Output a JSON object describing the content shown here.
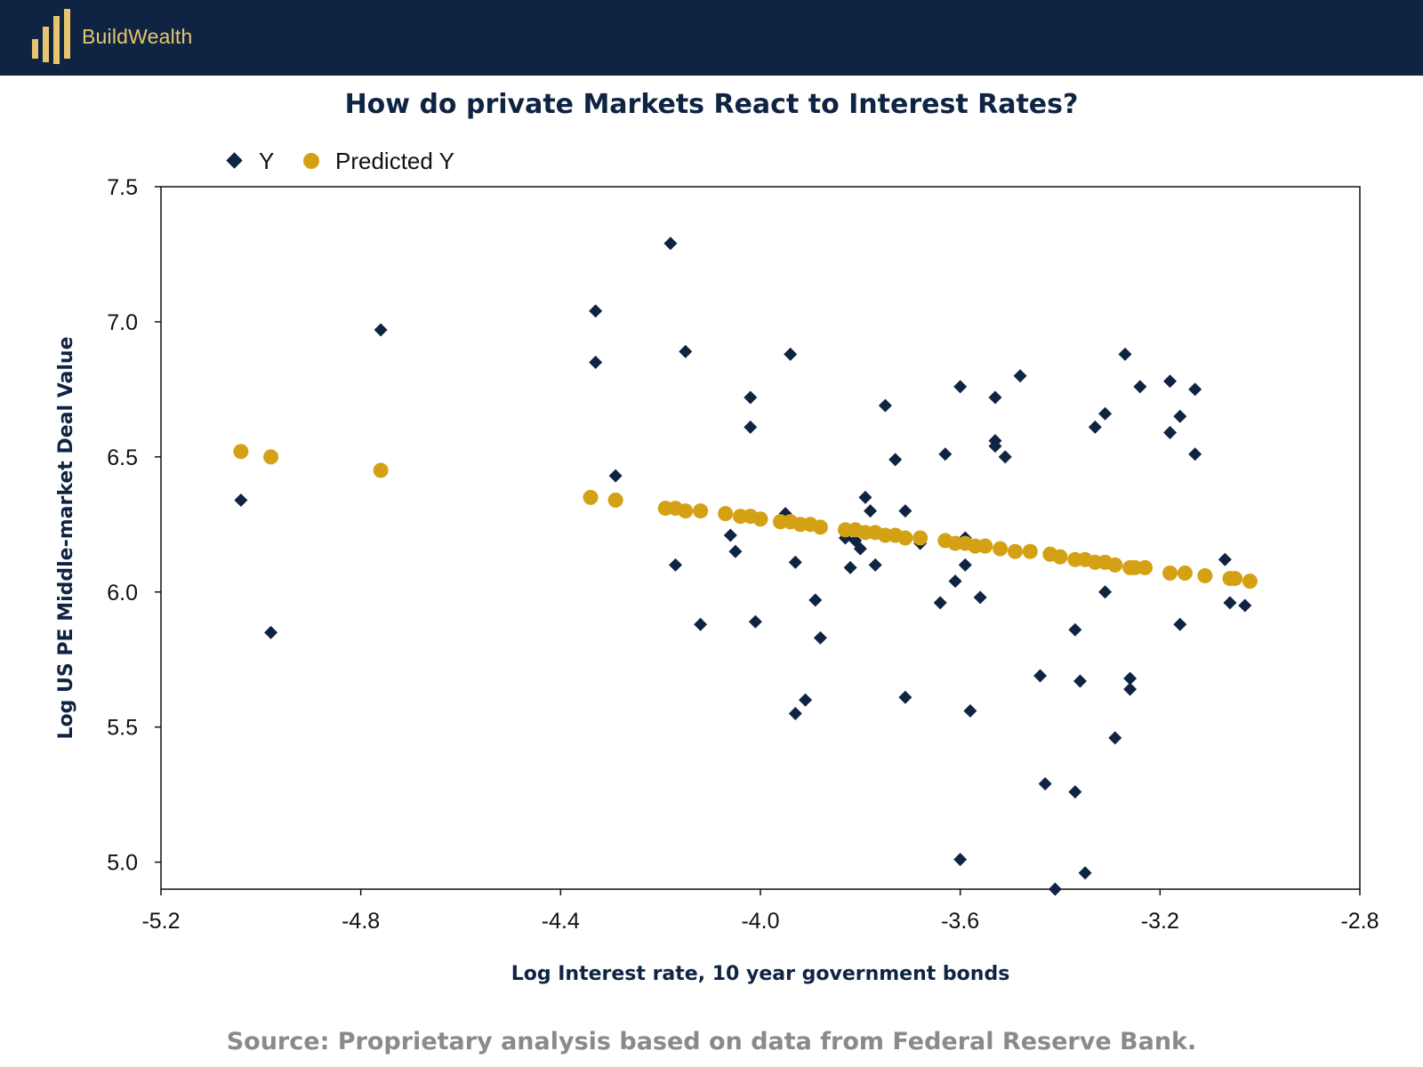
{
  "header": {
    "brand_name": "BuildWealth",
    "colors": {
      "bar": "#0f2443",
      "logo": "#e6c56e"
    }
  },
  "footer": {
    "source": "Source: Proprietary analysis based on data from   Federal Reserve Bank."
  },
  "chart_data": {
    "type": "scatter",
    "title": "How do private Markets React to Interest Rates?",
    "xlabel": "Log Interest rate, 10 year government bonds",
    "ylabel": "Log US PE Middle-market Deal Value",
    "xlim": [
      -5.2,
      -2.8
    ],
    "ylim": [
      4.9,
      7.5
    ],
    "xticks": [
      -5.2,
      -4.8,
      -4.4,
      -4.0,
      -3.6,
      -3.2,
      -2.8
    ],
    "xtick_labels": [
      "-5.2",
      "-4.8",
      "-4.4",
      "-4.0",
      "-3.6",
      "-3.2",
      "-2.8"
    ],
    "yticks": [
      5.0,
      5.5,
      6.0,
      6.5,
      7.0,
      7.5
    ],
    "ytick_labels": [
      "5.0",
      "5.5",
      "6.0",
      "6.5",
      "7.0",
      "7.5"
    ],
    "grid": false,
    "legend_position": "top-left",
    "series": [
      {
        "name": "Y",
        "marker": "diamond",
        "color": "#0f2443",
        "points": [
          [
            -5.04,
            6.34
          ],
          [
            -4.98,
            5.85
          ],
          [
            -4.76,
            6.97
          ],
          [
            -4.33,
            7.04
          ],
          [
            -4.33,
            6.85
          ],
          [
            -4.29,
            6.43
          ],
          [
            -4.18,
            7.29
          ],
          [
            -4.15,
            6.89
          ],
          [
            -4.17,
            6.1
          ],
          [
            -4.12,
            5.88
          ],
          [
            -4.06,
            6.21
          ],
          [
            -4.05,
            6.15
          ],
          [
            -4.02,
            6.72
          ],
          [
            -4.02,
            6.61
          ],
          [
            -4.01,
            5.89
          ],
          [
            -3.95,
            6.29
          ],
          [
            -3.94,
            6.88
          ],
          [
            -3.93,
            6.11
          ],
          [
            -3.93,
            5.55
          ],
          [
            -3.91,
            5.6
          ],
          [
            -3.89,
            5.97
          ],
          [
            -3.88,
            5.83
          ],
          [
            -3.83,
            6.2
          ],
          [
            -3.82,
            6.09
          ],
          [
            -3.81,
            6.19
          ],
          [
            -3.8,
            6.16
          ],
          [
            -3.79,
            6.35
          ],
          [
            -3.78,
            6.3
          ],
          [
            -3.77,
            6.1
          ],
          [
            -3.75,
            6.69
          ],
          [
            -3.73,
            6.49
          ],
          [
            -3.71,
            6.3
          ],
          [
            -3.71,
            5.61
          ],
          [
            -3.68,
            6.18
          ],
          [
            -3.63,
            6.51
          ],
          [
            -3.64,
            5.96
          ],
          [
            -3.61,
            6.04
          ],
          [
            -3.6,
            6.76
          ],
          [
            -3.59,
            6.2
          ],
          [
            -3.59,
            6.1
          ],
          [
            -3.6,
            5.01
          ],
          [
            -3.58,
            5.56
          ],
          [
            -3.56,
            5.98
          ],
          [
            -3.53,
            6.72
          ],
          [
            -3.53,
            6.56
          ],
          [
            -3.53,
            6.54
          ],
          [
            -3.51,
            6.5
          ],
          [
            -3.48,
            6.8
          ],
          [
            -3.44,
            5.69
          ],
          [
            -3.43,
            5.29
          ],
          [
            -3.41,
            4.9
          ],
          [
            -3.37,
            5.86
          ],
          [
            -3.37,
            5.26
          ],
          [
            -3.36,
            5.67
          ],
          [
            -3.35,
            4.96
          ],
          [
            -3.33,
            6.61
          ],
          [
            -3.31,
            6.66
          ],
          [
            -3.31,
            6.0
          ],
          [
            -3.29,
            5.46
          ],
          [
            -3.27,
            6.88
          ],
          [
            -3.26,
            5.64
          ],
          [
            -3.26,
            5.68
          ],
          [
            -3.24,
            6.76
          ],
          [
            -3.18,
            6.78
          ],
          [
            -3.18,
            6.59
          ],
          [
            -3.16,
            6.65
          ],
          [
            -3.16,
            5.88
          ],
          [
            -3.13,
            6.75
          ],
          [
            -3.13,
            6.51
          ],
          [
            -3.07,
            6.12
          ],
          [
            -3.06,
            5.96
          ],
          [
            -3.03,
            5.95
          ]
        ]
      },
      {
        "name": "Predicted Y",
        "marker": "circle",
        "color": "#d4a115",
        "points": [
          [
            -5.04,
            6.52
          ],
          [
            -4.98,
            6.5
          ],
          [
            -4.76,
            6.45
          ],
          [
            -4.34,
            6.35
          ],
          [
            -4.29,
            6.34
          ],
          [
            -4.19,
            6.31
          ],
          [
            -4.17,
            6.31
          ],
          [
            -4.15,
            6.3
          ],
          [
            -4.12,
            6.3
          ],
          [
            -4.07,
            6.29
          ],
          [
            -4.04,
            6.28
          ],
          [
            -4.02,
            6.28
          ],
          [
            -4.0,
            6.27
          ],
          [
            -3.96,
            6.26
          ],
          [
            -3.94,
            6.26
          ],
          [
            -3.92,
            6.25
          ],
          [
            -3.9,
            6.25
          ],
          [
            -3.88,
            6.24
          ],
          [
            -3.83,
            6.23
          ],
          [
            -3.81,
            6.23
          ],
          [
            -3.79,
            6.22
          ],
          [
            -3.77,
            6.22
          ],
          [
            -3.75,
            6.21
          ],
          [
            -3.73,
            6.21
          ],
          [
            -3.71,
            6.2
          ],
          [
            -3.68,
            6.2
          ],
          [
            -3.63,
            6.19
          ],
          [
            -3.61,
            6.18
          ],
          [
            -3.59,
            6.18
          ],
          [
            -3.57,
            6.17
          ],
          [
            -3.55,
            6.17
          ],
          [
            -3.52,
            6.16
          ],
          [
            -3.49,
            6.15
          ],
          [
            -3.46,
            6.15
          ],
          [
            -3.42,
            6.14
          ],
          [
            -3.4,
            6.13
          ],
          [
            -3.37,
            6.12
          ],
          [
            -3.35,
            6.12
          ],
          [
            -3.33,
            6.11
          ],
          [
            -3.31,
            6.11
          ],
          [
            -3.29,
            6.1
          ],
          [
            -3.26,
            6.09
          ],
          [
            -3.25,
            6.09
          ],
          [
            -3.23,
            6.09
          ],
          [
            -3.18,
            6.07
          ],
          [
            -3.15,
            6.07
          ],
          [
            -3.11,
            6.06
          ],
          [
            -3.06,
            6.05
          ],
          [
            -3.05,
            6.05
          ],
          [
            -3.02,
            6.04
          ]
        ]
      }
    ]
  }
}
